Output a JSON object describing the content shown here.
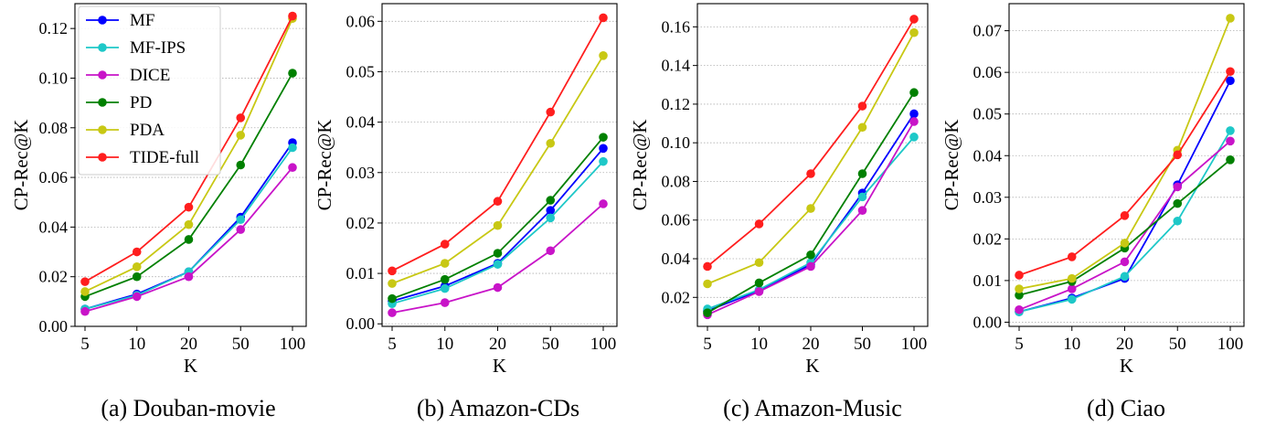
{
  "legend_entries": [
    "MF",
    "MF-IPS",
    "DICE",
    "PD",
    "PDA",
    "TIDE-full"
  ],
  "series_colors": {
    "MF": "#0000ff",
    "MF-IPS": "#1ec8c8",
    "DICE": "#c814c8",
    "PD": "#008000",
    "PDA": "#c8c814",
    "TIDE-full": "#ff1e1e"
  },
  "chart_data": [
    {
      "type": "line",
      "caption": "(a) Douban-movie",
      "xlabel": "K",
      "ylabel": "CP-Rec@K",
      "categories": [
        "5",
        "10",
        "20",
        "50",
        "100"
      ],
      "ylim": [
        0,
        0.13
      ],
      "yticks": [
        "0.00",
        "0.02",
        "0.04",
        "0.06",
        "0.08",
        "0.10",
        "0.12"
      ],
      "ytick_values": [
        0,
        0.02,
        0.04,
        0.06,
        0.08,
        0.1,
        0.12
      ],
      "grid": "horizontal dotted",
      "legend": "top-left",
      "series": [
        {
          "name": "MF",
          "values": [
            0.007,
            0.013,
            0.022,
            0.044,
            0.074
          ]
        },
        {
          "name": "MF-IPS",
          "values": [
            0.007,
            0.0125,
            0.022,
            0.043,
            0.072
          ]
        },
        {
          "name": "DICE",
          "values": [
            0.006,
            0.012,
            0.02,
            0.039,
            0.064
          ]
        },
        {
          "name": "PD",
          "values": [
            0.012,
            0.02,
            0.035,
            0.065,
            0.102
          ]
        },
        {
          "name": "PDA",
          "values": [
            0.014,
            0.024,
            0.041,
            0.077,
            0.124
          ]
        },
        {
          "name": "TIDE-full",
          "values": [
            0.018,
            0.03,
            0.048,
            0.084,
            0.125
          ]
        }
      ]
    },
    {
      "type": "line",
      "caption": "(b) Amazon-CDs",
      "xlabel": "K",
      "ylabel": "CP-Rec@K",
      "categories": [
        "5",
        "10",
        "20",
        "50",
        "100"
      ],
      "ylim": [
        -0.0005,
        0.0635
      ],
      "yticks": [
        "0.00",
        "0.01",
        "0.02",
        "0.03",
        "0.04",
        "0.05",
        "0.06"
      ],
      "ytick_values": [
        0,
        0.01,
        0.02,
        0.03,
        0.04,
        0.05,
        0.06
      ],
      "grid": "horizontal dotted",
      "series": [
        {
          "name": "MF",
          "values": [
            0.0045,
            0.0075,
            0.012,
            0.0225,
            0.0348
          ]
        },
        {
          "name": "MF-IPS",
          "values": [
            0.004,
            0.007,
            0.0118,
            0.021,
            0.0322
          ]
        },
        {
          "name": "DICE",
          "values": [
            0.0022,
            0.0042,
            0.0072,
            0.0145,
            0.0238
          ]
        },
        {
          "name": "PD",
          "values": [
            0.005,
            0.0088,
            0.014,
            0.0245,
            0.037
          ]
        },
        {
          "name": "PDA",
          "values": [
            0.008,
            0.012,
            0.0195,
            0.0358,
            0.0532
          ]
        },
        {
          "name": "TIDE-full",
          "values": [
            0.0105,
            0.0158,
            0.0243,
            0.042,
            0.0607
          ]
        }
      ]
    },
    {
      "type": "line",
      "caption": "(c) Amazon-Music",
      "xlabel": "K",
      "ylabel": "CP-Rec@K",
      "categories": [
        "5",
        "10",
        "20",
        "50",
        "100"
      ],
      "ylim": [
        0.005,
        0.172
      ],
      "yticks": [
        "0.02",
        "0.04",
        "0.06",
        "0.08",
        "0.10",
        "0.12",
        "0.14",
        "0.16"
      ],
      "ytick_values": [
        0.02,
        0.04,
        0.06,
        0.08,
        0.1,
        0.12,
        0.14,
        0.16
      ],
      "grid": "horizontal dotted",
      "series": [
        {
          "name": "MF",
          "values": [
            0.013,
            0.0235,
            0.037,
            0.074,
            0.115
          ]
        },
        {
          "name": "MF-IPS",
          "values": [
            0.014,
            0.024,
            0.038,
            0.072,
            0.103
          ]
        },
        {
          "name": "DICE",
          "values": [
            0.011,
            0.023,
            0.036,
            0.065,
            0.111
          ]
        },
        {
          "name": "PD",
          "values": [
            0.012,
            0.0275,
            0.042,
            0.084,
            0.126
          ]
        },
        {
          "name": "PDA",
          "values": [
            0.027,
            0.038,
            0.066,
            0.108,
            0.157
          ]
        },
        {
          "name": "TIDE-full",
          "values": [
            0.036,
            0.058,
            0.084,
            0.119,
            0.164
          ]
        }
      ]
    },
    {
      "type": "line",
      "caption": "(d) Ciao",
      "xlabel": "K",
      "ylabel": "CP-Rec@K",
      "categories": [
        "5",
        "10",
        "20",
        "50",
        "100"
      ],
      "ylim": [
        -0.001,
        0.0765
      ],
      "yticks": [
        "0.00",
        "0.01",
        "0.02",
        "0.03",
        "0.04",
        "0.05",
        "0.06",
        "0.07"
      ],
      "ytick_values": [
        0,
        0.01,
        0.02,
        0.03,
        0.04,
        0.05,
        0.06,
        0.07
      ],
      "grid": "horizontal dotted",
      "series": [
        {
          "name": "MF",
          "values": [
            0.0025,
            0.0058,
            0.0105,
            0.033,
            0.058
          ]
        },
        {
          "name": "MF-IPS",
          "values": [
            0.0025,
            0.0055,
            0.011,
            0.0243,
            0.046
          ]
        },
        {
          "name": "DICE",
          "values": [
            0.003,
            0.008,
            0.0145,
            0.0325,
            0.0435
          ]
        },
        {
          "name": "PD",
          "values": [
            0.0065,
            0.0098,
            0.0178,
            0.0285,
            0.039
          ]
        },
        {
          "name": "PDA",
          "values": [
            0.008,
            0.0105,
            0.019,
            0.0413,
            0.073
          ]
        },
        {
          "name": "TIDE-full",
          "values": [
            0.0113,
            0.0157,
            0.0256,
            0.0402,
            0.0602
          ]
        }
      ]
    }
  ]
}
